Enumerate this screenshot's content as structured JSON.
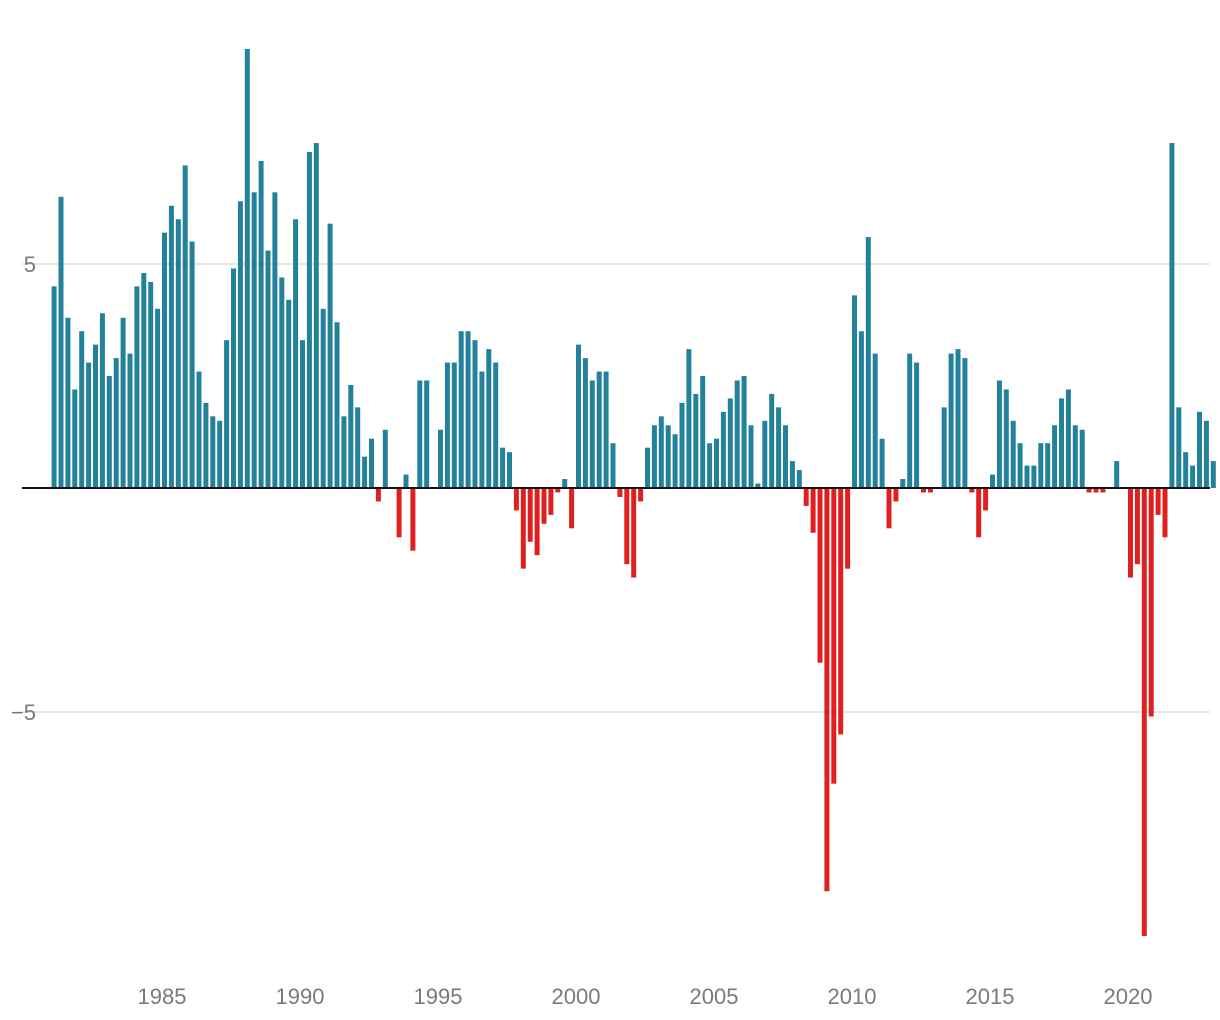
{
  "chart_data": {
    "type": "bar",
    "title": "",
    "xlabel": "",
    "ylabel": "",
    "x_start": "1981 Q1",
    "frequency": "quarterly",
    "ylim": [
      -10.6,
      9.8
    ],
    "yticks": [
      5,
      -5
    ],
    "ytick_labels": [
      "5",
      "−5"
    ],
    "xticks": [
      1985,
      1990,
      1995,
      2000,
      2005,
      2010,
      2015,
      2020
    ],
    "xtick_labels": [
      "1985",
      "1990",
      "1995",
      "2000",
      "2005",
      "2010",
      "2015",
      "2020"
    ],
    "grid": true,
    "colors": {
      "positive": "#23819c",
      "negative": "#e02020",
      "grid": "#dddddd",
      "zero_line": "#111111",
      "tick_text": "#7a7a7a"
    },
    "values": [
      4.5,
      6.5,
      3.8,
      2.2,
      3.5,
      2.8,
      3.2,
      3.9,
      2.5,
      2.9,
      3.8,
      3.0,
      4.5,
      4.8,
      4.6,
      4.0,
      5.7,
      6.3,
      6.0,
      7.2,
      5.5,
      2.6,
      1.9,
      1.6,
      1.5,
      3.3,
      4.9,
      6.4,
      9.8,
      6.6,
      7.3,
      5.3,
      6.6,
      4.7,
      4.2,
      6.0,
      3.3,
      7.5,
      7.7,
      4.0,
      5.9,
      3.7,
      1.6,
      2.3,
      1.8,
      0.7,
      1.1,
      -0.3,
      1.3,
      0.0,
      -1.1,
      0.3,
      -1.4,
      2.4,
      2.4,
      0.0,
      1.3,
      2.8,
      2.8,
      3.5,
      3.5,
      3.3,
      2.6,
      3.1,
      2.8,
      0.9,
      0.8,
      -0.5,
      -1.8,
      -1.2,
      -1.5,
      -0.8,
      -0.6,
      -0.1,
      0.2,
      -0.9,
      3.2,
      2.9,
      2.4,
      2.6,
      2.6,
      1.0,
      -0.2,
      -1.7,
      -2.0,
      -0.3,
      0.9,
      1.4,
      1.6,
      1.4,
      1.2,
      1.9,
      3.1,
      2.1,
      2.5,
      1.0,
      1.1,
      1.7,
      2.0,
      2.4,
      2.5,
      1.4,
      0.1,
      1.5,
      2.1,
      1.8,
      1.4,
      0.6,
      0.4,
      -0.4,
      -1.0,
      -3.9,
      -9.0,
      -6.6,
      -5.5,
      -1.8,
      4.3,
      3.5,
      5.6,
      3.0,
      1.1,
      -0.9,
      -0.3,
      0.2,
      3.0,
      2.8,
      -0.1,
      -0.1,
      0.0,
      1.8,
      3.0,
      3.1,
      2.9,
      -0.1,
      -1.1,
      -0.5,
      0.3,
      2.4,
      2.2,
      1.5,
      1.0,
      0.5,
      0.5,
      1.0,
      1.0,
      1.4,
      2.0,
      2.2,
      1.4,
      1.3,
      -0.1,
      -0.1,
      -0.1,
      0.0,
      0.6,
      0.0,
      -2.0,
      -1.7,
      -10.0,
      -5.1,
      -0.6,
      -1.1,
      7.7,
      1.8,
      0.8,
      0.5,
      1.7,
      1.5,
      0.6
    ]
  }
}
